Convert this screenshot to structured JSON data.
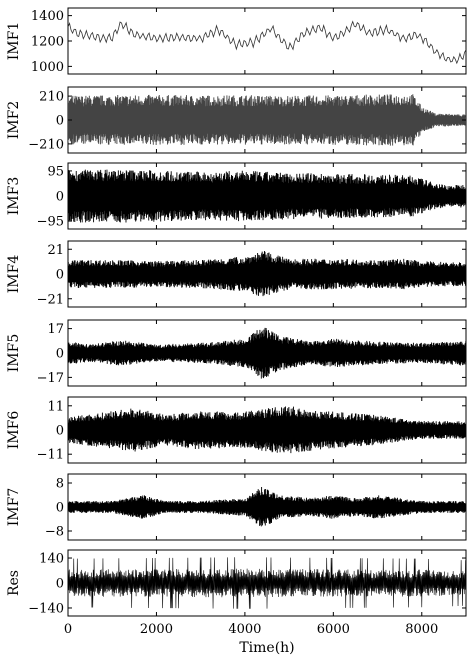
{
  "chart_data": {
    "type": "line",
    "xlabel": "Time(h)",
    "x_ticks": [
      0,
      2000,
      4000,
      6000,
      8000
    ],
    "x_ticks_labels": [
      "0",
      "2000",
      "4000",
      "6000",
      "8000"
    ],
    "xlim": [
      0,
      9000
    ],
    "grid": false,
    "panels": [
      {
        "name": "IMF1",
        "yticks": [
          1000,
          1200,
          1400
        ],
        "ytick_labels": [
          "1000",
          "1200",
          "1400"
        ],
        "ylim": [
          940,
          1460
        ],
        "style": "thin",
        "envelope": [
          [
            0,
            1310
          ],
          [
            200,
            1260
          ],
          [
            500,
            1240
          ],
          [
            800,
            1220
          ],
          [
            1000,
            1230
          ],
          [
            1200,
            1340
          ],
          [
            1500,
            1250
          ],
          [
            2000,
            1220
          ],
          [
            2500,
            1230
          ],
          [
            3000,
            1220
          ],
          [
            3400,
            1290
          ],
          [
            3800,
            1170
          ],
          [
            4200,
            1190
          ],
          [
            4600,
            1300
          ],
          [
            5000,
            1140
          ],
          [
            5300,
            1250
          ],
          [
            5700,
            1310
          ],
          [
            6000,
            1220
          ],
          [
            6300,
            1280
          ],
          [
            6500,
            1340
          ],
          [
            6800,
            1260
          ],
          [
            7200,
            1290
          ],
          [
            7600,
            1220
          ],
          [
            7900,
            1250
          ],
          [
            8100,
            1200
          ],
          [
            8300,
            1120
          ],
          [
            8600,
            1050
          ],
          [
            8800,
            1050
          ],
          [
            9000,
            1100
          ]
        ],
        "amplitude_profile": [
          [
            0,
            40
          ],
          [
            9000,
            40
          ]
        ]
      },
      {
        "name": "IMF2",
        "yticks": [
          -210,
          0,
          210
        ],
        "ytick_labels": [
          "−210",
          "0",
          "210"
        ],
        "ylim": [
          -290,
          290
        ],
        "style": "band",
        "amplitude_profile": [
          [
            0,
            215
          ],
          [
            1000,
            220
          ],
          [
            2000,
            222
          ],
          [
            3000,
            218
          ],
          [
            4000,
            220
          ],
          [
            5000,
            215
          ],
          [
            6000,
            218
          ],
          [
            7000,
            225
          ],
          [
            7800,
            230
          ],
          [
            8000,
            120
          ],
          [
            8300,
            60
          ],
          [
            9000,
            50
          ]
        ]
      },
      {
        "name": "IMF3",
        "yticks": [
          -95,
          0,
          95
        ],
        "ytick_labels": [
          "−95",
          "0",
          "95"
        ],
        "ylim": [
          -125,
          125
        ],
        "style": "solid",
        "amplitude_profile": [
          [
            0,
            100
          ],
          [
            1000,
            102
          ],
          [
            2000,
            98
          ],
          [
            3000,
            92
          ],
          [
            4000,
            96
          ],
          [
            5000,
            88
          ],
          [
            6000,
            85
          ],
          [
            7000,
            82
          ],
          [
            7800,
            78
          ],
          [
            8200,
            55
          ],
          [
            8600,
            40
          ],
          [
            9000,
            45
          ]
        ]
      },
      {
        "name": "IMF4",
        "yticks": [
          -21,
          0,
          21
        ],
        "ytick_labels": [
          "−21",
          "0",
          "21"
        ],
        "ylim": [
          -28,
          28
        ],
        "style": "solid",
        "amplitude_profile": [
          [
            0,
            12
          ],
          [
            1000,
            12
          ],
          [
            2000,
            11
          ],
          [
            3000,
            12
          ],
          [
            4000,
            15
          ],
          [
            4400,
            20
          ],
          [
            5000,
            13
          ],
          [
            6000,
            13
          ],
          [
            7000,
            12
          ],
          [
            7600,
            13
          ],
          [
            8000,
            11
          ],
          [
            9000,
            10
          ]
        ]
      },
      {
        "name": "IMF5",
        "yticks": [
          -17,
          0,
          17
        ],
        "ytick_labels": [
          "−17",
          "0",
          "17"
        ],
        "ylim": [
          -23,
          23
        ],
        "style": "solid",
        "amplitude_profile": [
          [
            0,
            8
          ],
          [
            500,
            6
          ],
          [
            1200,
            9
          ],
          [
            2000,
            6
          ],
          [
            3000,
            7
          ],
          [
            4000,
            10
          ],
          [
            4400,
            19
          ],
          [
            4800,
            12
          ],
          [
            5500,
            8
          ],
          [
            6000,
            10
          ],
          [
            7000,
            8
          ],
          [
            8000,
            7
          ],
          [
            9000,
            9
          ]
        ]
      },
      {
        "name": "IMF6",
        "yticks": [
          -11,
          0,
          11
        ],
        "ytick_labels": [
          "−11",
          "0",
          "11"
        ],
        "ylim": [
          -15,
          15
        ],
        "style": "solid",
        "amplitude_profile": [
          [
            0,
            6
          ],
          [
            800,
            8
          ],
          [
            1500,
            10
          ],
          [
            2200,
            7
          ],
          [
            3000,
            9
          ],
          [
            3800,
            8
          ],
          [
            4500,
            10
          ],
          [
            5000,
            11
          ],
          [
            5600,
            9
          ],
          [
            6200,
            8
          ],
          [
            7000,
            7
          ],
          [
            7600,
            5
          ],
          [
            8200,
            4
          ],
          [
            9000,
            4
          ]
        ]
      },
      {
        "name": "IMF7",
        "yticks": [
          -8,
          0,
          8
        ],
        "ytick_labels": [
          "−8",
          "0",
          "8"
        ],
        "ylim": [
          -11,
          11
        ],
        "style": "solid",
        "amplitude_profile": [
          [
            0,
            2
          ],
          [
            1000,
            2
          ],
          [
            1700,
            4
          ],
          [
            2200,
            2
          ],
          [
            3000,
            2
          ],
          [
            4000,
            3
          ],
          [
            4400,
            7
          ],
          [
            4800,
            4
          ],
          [
            5500,
            3
          ],
          [
            6000,
            4
          ],
          [
            6500,
            3
          ],
          [
            7000,
            4
          ],
          [
            8000,
            2
          ],
          [
            9000,
            2
          ]
        ]
      },
      {
        "name": "Res",
        "yticks": [
          -140,
          0,
          140
        ],
        "ytick_labels": [
          "−140",
          "0",
          "140"
        ],
        "ylim": [
          -185,
          185
        ],
        "style": "spiky",
        "amplitude_profile": [
          [
            0,
            80
          ],
          [
            4000,
            85
          ],
          [
            8000,
            80
          ],
          [
            9000,
            75
          ]
        ]
      }
    ]
  }
}
